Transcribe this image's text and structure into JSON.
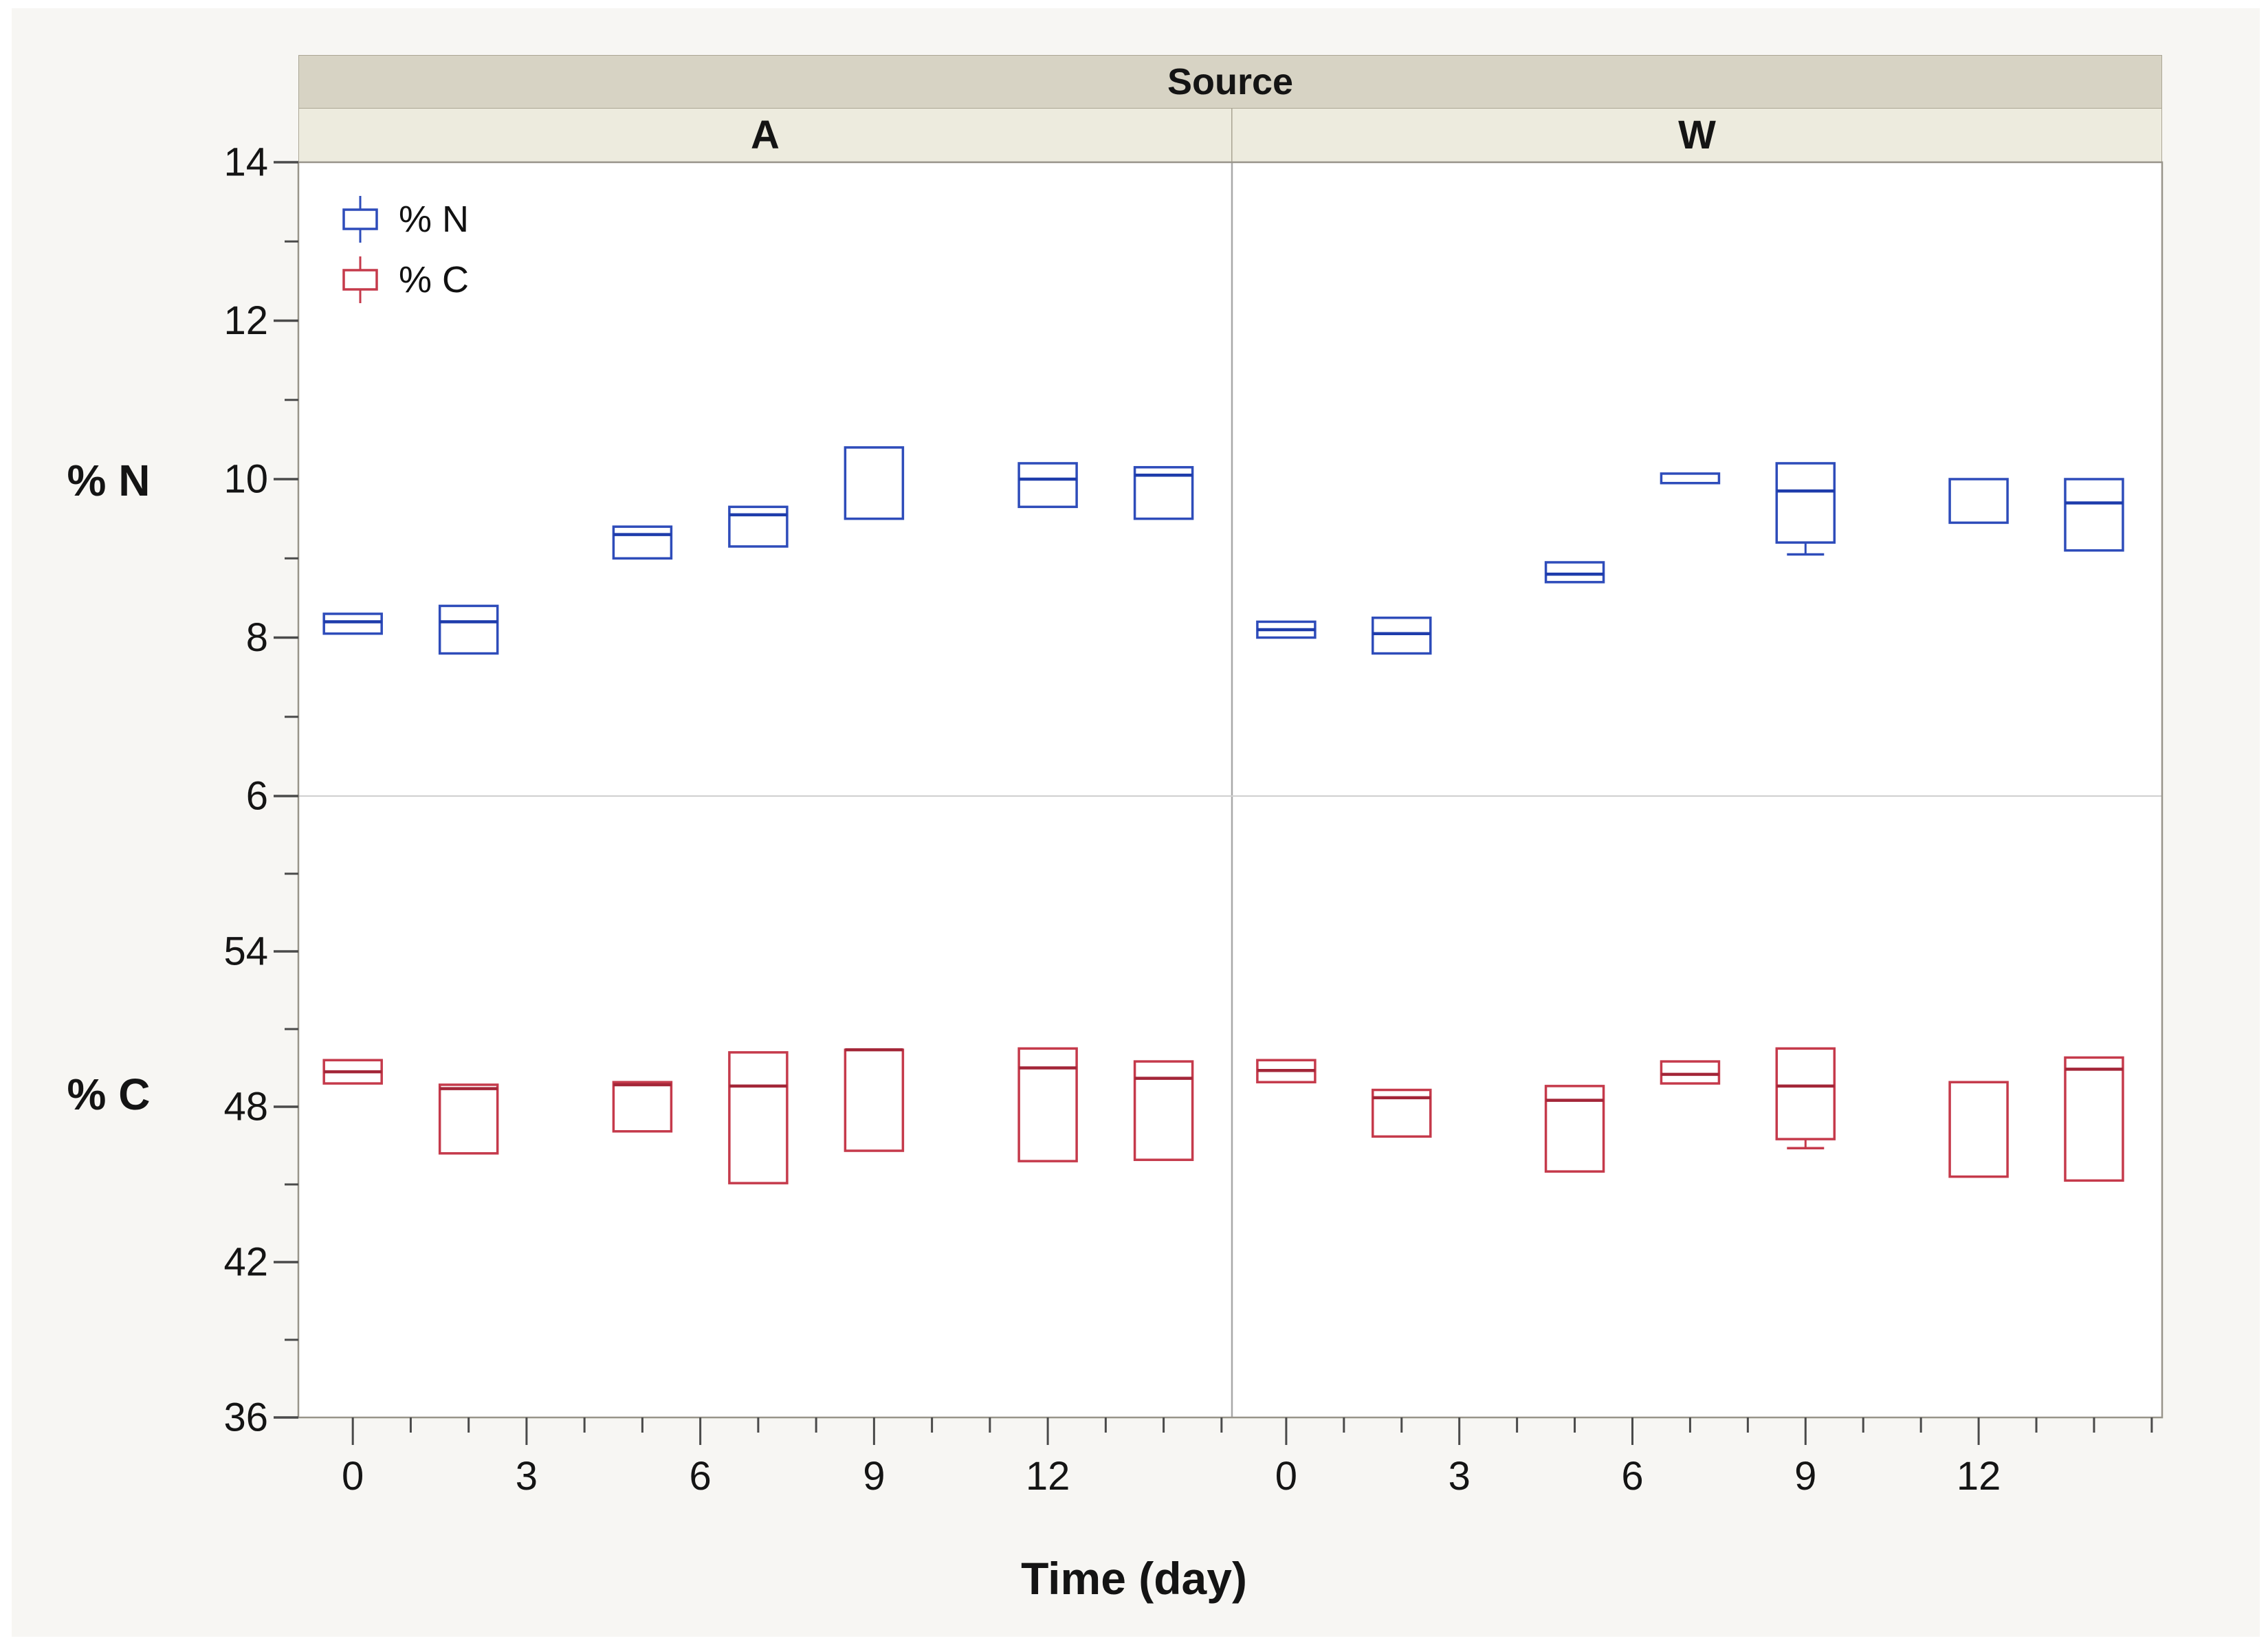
{
  "chart_data": {
    "type": "box",
    "title": "",
    "facet": {
      "label": "Source",
      "groups": [
        "A",
        "W"
      ]
    },
    "xlabel": "Time (day)",
    "x_axis": {
      "ticks_major": [
        0,
        3,
        6,
        9,
        12
      ],
      "minor_step": 1,
      "range": [
        -0.94,
        15.18
      ]
    },
    "legend": [
      {
        "label": "% N",
        "color": "#2e4cba"
      },
      {
        "label": "% C",
        "color": "#c53a4b"
      }
    ],
    "colors": {
      "blue": "#2e4cba",
      "blue_median": "#1e3cab",
      "red": "#c53a4b",
      "red_median": "#a32638",
      "figure_bg": "#f7f6f3",
      "source_band": "#d7d3c4",
      "group_band": "#edebde",
      "plot_border": "#98948a",
      "tick": "#4a4a4a",
      "divider_v": "#a8a8a8",
      "divider_h": "#cfcfcf"
    },
    "rows": [
      {
        "label": "% N",
        "axis": {
          "min": 6,
          "max": 14,
          "majors": [
            14,
            12,
            10,
            8,
            6
          ],
          "minors": [
            13,
            11,
            9,
            7
          ]
        },
        "groups": {
          "A": [
            {
              "day": 0,
              "q1": 8.05,
              "med": 8.2,
              "q3": 8.3
            },
            {
              "day": 2,
              "q1": 7.8,
              "med": 8.2,
              "q3": 8.4
            },
            {
              "day": 5,
              "q1": 9.0,
              "med": 9.3,
              "q3": 9.4
            },
            {
              "day": 7,
              "q1": 9.15,
              "med": 9.55,
              "q3": 9.65
            },
            {
              "day": 9,
              "q1": 9.5,
              "med": null,
              "q3": 10.4
            },
            {
              "day": 12,
              "q1": 9.65,
              "med": 10.0,
              "q3": 10.2
            },
            {
              "day": 14,
              "q1": 9.5,
              "med": 10.05,
              "q3": 10.15
            }
          ],
          "W": [
            {
              "day": 0,
              "q1": 8.0,
              "med": 8.1,
              "q3": 8.2
            },
            {
              "day": 2,
              "q1": 7.8,
              "med": 8.05,
              "q3": 8.25
            },
            {
              "day": 5,
              "q1": 8.7,
              "med": 8.8,
              "q3": 8.95
            },
            {
              "day": 7,
              "q1": 9.95,
              "med": null,
              "q3": 10.07
            },
            {
              "day": 9,
              "q1": 9.2,
              "med": 9.85,
              "q3": 10.2,
              "lo": 9.05
            },
            {
              "day": 12,
              "q1": 9.45,
              "med": null,
              "q3": 10.0
            },
            {
              "day": 14,
              "q1": 9.1,
              "med": 9.7,
              "q3": 10.0
            }
          ]
        }
      },
      {
        "label": "% C",
        "axis": {
          "min": 36,
          "max": 60,
          "majors": [
            54,
            48,
            42,
            36
          ],
          "minors": [
            57,
            51,
            45,
            39
          ]
        },
        "groups": {
          "A": [
            {
              "day": 0,
              "q1": 48.9,
              "med": 49.35,
              "q3": 49.8
            },
            {
              "day": 2,
              "q1": 46.2,
              "med": 48.7,
              "q3": 48.85
            },
            {
              "day": 5,
              "q1": 47.05,
              "med": 48.85,
              "q3": 48.95
            },
            {
              "day": 7,
              "q1": 45.05,
              "med": 48.8,
              "q3": 50.1
            },
            {
              "day": 9,
              "q1": 46.3,
              "med": 50.2,
              "q3": 50.2
            },
            {
              "day": 12,
              "q1": 45.9,
              "med": 49.5,
              "q3": 50.25
            },
            {
              "day": 14,
              "q1": 45.95,
              "med": 49.1,
              "q3": 49.75
            }
          ],
          "W": [
            {
              "day": 0,
              "q1": 48.95,
              "med": 49.4,
              "q3": 49.8
            },
            {
              "day": 2,
              "q1": 46.85,
              "med": 48.35,
              "q3": 48.65
            },
            {
              "day": 5,
              "q1": 45.5,
              "med": 48.25,
              "q3": 48.8
            },
            {
              "day": 7,
              "q1": 48.9,
              "med": 49.25,
              "q3": 49.75
            },
            {
              "day": 9,
              "q1": 46.75,
              "med": 48.8,
              "q3": 50.25,
              "lo": 46.4
            },
            {
              "day": 12,
              "q1": 45.3,
              "med": null,
              "q3": 48.95
            },
            {
              "day": 14,
              "q1": 45.15,
              "med": 49.45,
              "q3": 49.9
            }
          ]
        }
      }
    ]
  }
}
